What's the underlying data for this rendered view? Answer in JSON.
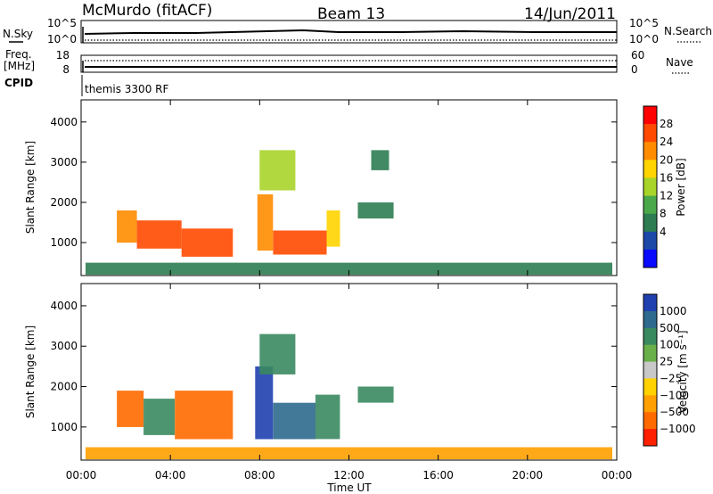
{
  "header": {
    "station": "McMurdo (fitACF)",
    "beam": "Beam 13",
    "date": "14/Jun/2011"
  },
  "panels": {
    "nsky": {
      "left_label": "N.Sky",
      "left_ticks": [
        "10^5",
        "10^0"
      ],
      "right_label": "N.Search",
      "right_ticks": [
        "10^5",
        "10^0"
      ]
    },
    "freq": {
      "left_label_1": "Freq.",
      "left_label_2": "[MHz]",
      "left_ticks": [
        "18",
        "8"
      ],
      "right_label": "Nave",
      "right_ticks": [
        "60",
        "0"
      ]
    },
    "cpid": {
      "label": "CPID",
      "text": "themis 3300 RF"
    }
  },
  "colorbars": {
    "power": {
      "label": "Power [dB]",
      "ticks": [
        "28",
        "24",
        "20",
        "16",
        "12",
        "8",
        "4"
      ],
      "colors": [
        "#ff0000",
        "#ff4a00",
        "#ff8c00",
        "#ffd400",
        "#a8d42a",
        "#4aa84a",
        "#2e7d52",
        "#1c48a8",
        "#0a0aff"
      ]
    },
    "velocity": {
      "label": "Velocity [m s⁻¹]",
      "ticks": [
        "1000",
        "500",
        "100",
        "25",
        "−25",
        "−100",
        "−500",
        "−1000"
      ],
      "colors": [
        "#2040b0",
        "#2e6a8e",
        "#3a8a60",
        "#6ab04a",
        "#c8c8c8",
        "#ffd200",
        "#ffa000",
        "#ff6a00",
        "#ff2000"
      ]
    }
  },
  "chart_data": {
    "type": "heatmap",
    "x_label": "Time UT",
    "x_ticks": [
      "00:00",
      "04:00",
      "08:00",
      "12:00",
      "16:00",
      "20:00",
      "00:00"
    ],
    "x_range_hours": [
      0,
      24
    ],
    "y_label": "Slant Range [km]",
    "y_ticks": [
      1000,
      2000,
      3000,
      4000
    ],
    "y_range_km": [
      180,
      4550
    ],
    "panels": [
      {
        "name": "power",
        "unit": "dB",
        "regions": [
          {
            "t0": 1.6,
            "t1": 2.5,
            "r0": 1000,
            "r1": 1800,
            "level": 24
          },
          {
            "t0": 2.5,
            "t1": 4.5,
            "r0": 850,
            "r1": 1550,
            "level": 28
          },
          {
            "t0": 4.5,
            "t1": 6.8,
            "r0": 650,
            "r1": 1350,
            "level": 28
          },
          {
            "t0": 7.9,
            "t1": 8.6,
            "r0": 800,
            "r1": 2200,
            "level": 24
          },
          {
            "t0": 8.6,
            "t1": 11.0,
            "r0": 700,
            "r1": 1300,
            "level": 28
          },
          {
            "t0": 11.0,
            "t1": 11.6,
            "r0": 900,
            "r1": 1800,
            "level": 20
          },
          {
            "t0": 12.4,
            "t1": 14.0,
            "r0": 1600,
            "r1": 2000,
            "level": 8
          },
          {
            "t0": 8.0,
            "t1": 9.6,
            "r0": 2300,
            "r1": 3300,
            "level": 16
          },
          {
            "t0": 13.0,
            "t1": 13.8,
            "r0": 2800,
            "r1": 3300,
            "level": 8
          },
          {
            "t0": 0.2,
            "t1": 23.8,
            "r0": 200,
            "r1": 500,
            "level": 8
          }
        ]
      },
      {
        "name": "velocity",
        "unit": "m s-1",
        "regions": [
          {
            "t0": 1.6,
            "t1": 2.8,
            "r0": 1000,
            "r1": 1900,
            "level": -500
          },
          {
            "t0": 2.8,
            "t1": 4.2,
            "r0": 800,
            "r1": 1700,
            "level": 100
          },
          {
            "t0": 4.2,
            "t1": 6.8,
            "r0": 700,
            "r1": 1900,
            "level": -500
          },
          {
            "t0": 7.8,
            "t1": 8.6,
            "r0": 700,
            "r1": 2500,
            "level": 1000
          },
          {
            "t0": 8.6,
            "t1": 10.5,
            "r0": 700,
            "r1": 1600,
            "level": 500
          },
          {
            "t0": 10.5,
            "t1": 11.6,
            "r0": 700,
            "r1": 1800,
            "level": 100
          },
          {
            "t0": 8.0,
            "t1": 9.6,
            "r0": 2300,
            "r1": 3300,
            "level": 100
          },
          {
            "t0": 12.4,
            "t1": 14.0,
            "r0": 1600,
            "r1": 2000,
            "level": 100
          },
          {
            "t0": 0.2,
            "t1": 23.8,
            "r0": 200,
            "r1": 500,
            "level": -100
          }
        ]
      }
    ]
  }
}
